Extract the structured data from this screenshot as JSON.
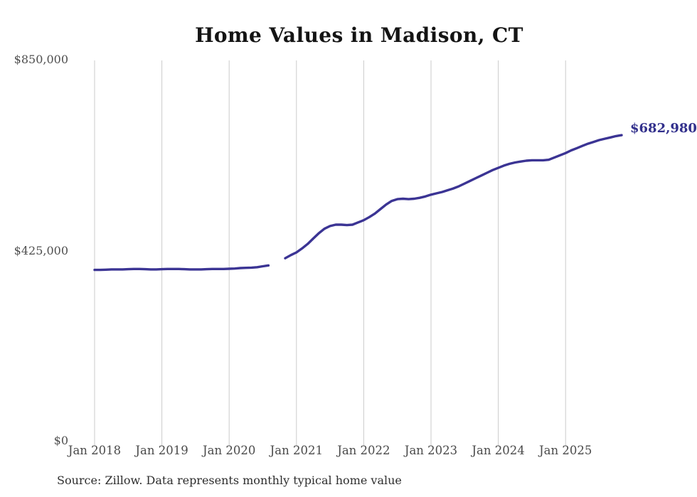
{
  "chart_data": {
    "type": "line",
    "title": "Home Values in Madison, CT",
    "xlabel": "",
    "ylabel": "",
    "ylim": [
      0,
      850000
    ],
    "y_tick_labels": [
      "$0",
      "$425,000",
      "$850,000"
    ],
    "x_tick_labels": [
      "Jan 2018",
      "Jan 2019",
      "Jan 2020",
      "Jan 2021",
      "Jan 2022",
      "Jan 2023",
      "Jan 2024",
      "Jan 2025"
    ],
    "x_start_month": "2018-01",
    "x_step": "1 month",
    "gap_months": [
      "2020-09",
      "2020-10"
    ],
    "end_label": "$682,980",
    "final_value": 682980,
    "grid": "vertical-only",
    "legend_position": "none",
    "line_color": "#3b3494",
    "end_label_color": "#32308c",
    "grid_color": "#cbcbcb",
    "series": [
      {
        "name": "Monthly typical home value (USD)",
        "values": [
          382000,
          382000,
          382500,
          383000,
          383000,
          383000,
          383500,
          384000,
          384000,
          383500,
          383000,
          383000,
          383500,
          384000,
          384000,
          384000,
          383500,
          383000,
          383000,
          383000,
          383500,
          384000,
          384000,
          384000,
          384500,
          385000,
          386000,
          386500,
          387000,
          388000,
          390000,
          392000,
          null,
          null,
          408000,
          415000,
          421000,
          430000,
          440000,
          452000,
          464000,
          474000,
          480000,
          483000,
          483000,
          482000,
          483000,
          488000,
          493000,
          500000,
          508000,
          518000,
          528000,
          536000,
          540000,
          541000,
          540000,
          541000,
          543000,
          546000,
          550000,
          553000,
          556000,
          560000,
          564000,
          569000,
          575000,
          581000,
          587000,
          593000,
          599000,
          605000,
          610000,
          615000,
          619000,
          622000,
          624000,
          626000,
          627000,
          627000,
          627000,
          628000,
          633000,
          638000,
          643000,
          649000,
          654000,
          659000,
          664000,
          668000,
          672000,
          675000,
          678000,
          681000,
          682980
        ]
      }
    ]
  },
  "footer": {
    "source": "Source: Zillow. Data represents monthly typical home value"
  }
}
